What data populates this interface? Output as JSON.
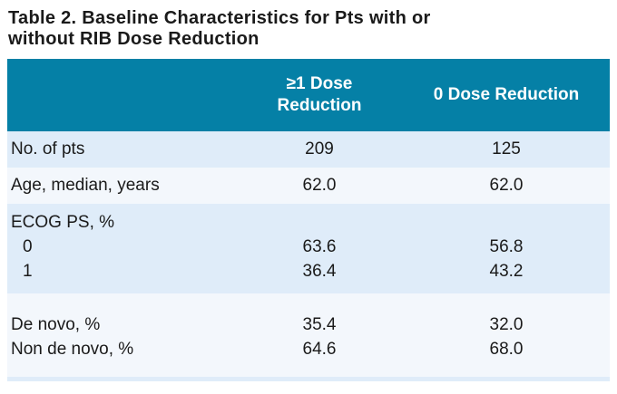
{
  "title": {
    "lines": [
      "Table 2. Baseline Characteristics for Pts with or",
      "without RIB Dose Reduction"
    ]
  },
  "table": {
    "columns": [
      "",
      "≥1 Dose Reduction",
      "0 Dose Reduction"
    ],
    "groups": [
      {
        "rows": [
          {
            "label": "No. of pts",
            "values": [
              "209",
              "125"
            ]
          }
        ]
      },
      {
        "rows": [
          {
            "label": "Age, median, years",
            "values": [
              "62.0",
              "62.0"
            ]
          }
        ]
      },
      {
        "rows": [
          {
            "label": "ECOG PS, %",
            "values": [
              "",
              ""
            ]
          },
          {
            "label": "0",
            "values": [
              "63.6",
              "56.8"
            ]
          },
          {
            "label": "1",
            "values": [
              "36.4",
              "43.2"
            ]
          }
        ]
      },
      {
        "rows": [
          {
            "label": "De novo, %",
            "values": [
              "35.4",
              "32.0"
            ]
          },
          {
            "label": "Non de novo, %",
            "values": [
              "64.6",
              "68.0"
            ]
          }
        ]
      }
    ]
  },
  "theme": {
    "header_bg": "#0580A6",
    "header_text": "#FFFFFF",
    "row_shade_blue": "#DFECF9",
    "row_shade_light": "#F3F7FC",
    "body_text": "#1A1A1A",
    "page_bg": "#FFFFFF"
  }
}
